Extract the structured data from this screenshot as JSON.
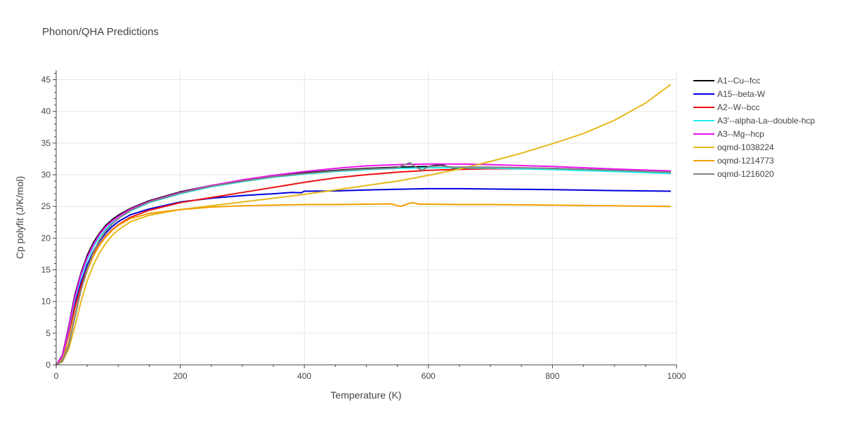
{
  "chart_data": {
    "type": "line",
    "title": "Phonon/QHA Predictions",
    "xlabel": "Temperature (K)",
    "ylabel": "Cp polyfit (J/K/mol)",
    "xlim": [
      0,
      1000
    ],
    "ylim": [
      0,
      46.5
    ],
    "x_ticks": [
      0,
      200,
      400,
      600,
      800,
      1000
    ],
    "y_ticks": [
      0,
      5,
      10,
      15,
      20,
      25,
      30,
      35,
      40,
      45
    ],
    "grid": true,
    "legend_position": "right",
    "series": [
      {
        "name": "A1--Cu--fcc",
        "color": "#000000",
        "x": [
          0,
          10,
          20,
          30,
          40,
          50,
          60,
          70,
          80,
          90,
          100,
          120,
          150,
          200,
          250,
          300,
          350,
          400,
          450,
          500,
          550,
          600,
          620,
          640,
          700,
          800,
          900,
          990
        ],
        "y": [
          0,
          1.5,
          6.0,
          11.0,
          14.5,
          17.3,
          19.3,
          20.8,
          22.0,
          22.9,
          23.6,
          24.7,
          25.9,
          27.3,
          28.3,
          29.1,
          29.8,
          30.3,
          30.7,
          31.0,
          31.2,
          31.3,
          31.6,
          31.0,
          31.1,
          31.0,
          30.7,
          30.3
        ]
      },
      {
        "name": "A15--beta-W",
        "color": "#0000dd",
        "x": [
          0,
          10,
          20,
          30,
          40,
          50,
          60,
          70,
          80,
          90,
          100,
          120,
          150,
          200,
          250,
          300,
          350,
          380,
          395,
          400,
          450,
          500,
          550,
          600,
          650,
          700,
          800,
          900,
          990
        ],
        "y": [
          0,
          1.2,
          5.0,
          9.5,
          13.0,
          15.8,
          17.9,
          19.5,
          20.8,
          21.8,
          22.6,
          23.7,
          24.6,
          25.7,
          26.3,
          26.7,
          27.0,
          27.2,
          27.15,
          27.4,
          27.45,
          27.6,
          27.7,
          27.8,
          27.8,
          27.75,
          27.65,
          27.5,
          27.4
        ]
      },
      {
        "name": "A2--W--bcc",
        "color": "#ee1111",
        "x": [
          0,
          10,
          20,
          30,
          40,
          50,
          60,
          70,
          80,
          90,
          100,
          120,
          150,
          200,
          250,
          300,
          350,
          400,
          450,
          500,
          550,
          600,
          650,
          700,
          800,
          900,
          990
        ],
        "y": [
          0,
          1.2,
          4.8,
          9.0,
          12.5,
          15.3,
          17.4,
          19.0,
          20.3,
          21.3,
          22.1,
          23.3,
          24.4,
          25.6,
          26.4,
          27.2,
          28.0,
          28.8,
          29.5,
          30.0,
          30.4,
          30.7,
          30.85,
          30.95,
          30.9,
          30.6,
          30.3
        ]
      },
      {
        "name": "A3'--alpha-La--double-hcp",
        "color": "#22eeee",
        "x": [
          0,
          10,
          20,
          30,
          40,
          50,
          60,
          70,
          80,
          90,
          100,
          120,
          150,
          200,
          250,
          300,
          350,
          400,
          450,
          500,
          550,
          600,
          650,
          700,
          800,
          900,
          990
        ],
        "y": [
          0,
          1.3,
          5.5,
          10.3,
          13.9,
          16.6,
          18.6,
          20.2,
          21.4,
          22.4,
          23.1,
          24.3,
          25.6,
          27.0,
          28.1,
          28.9,
          29.6,
          30.1,
          30.5,
          30.8,
          31.0,
          31.1,
          31.1,
          31.05,
          30.8,
          30.5,
          30.2
        ]
      },
      {
        "name": "A3--Mg--hcp",
        "color": "#ee11ee",
        "x": [
          0,
          10,
          20,
          30,
          40,
          50,
          60,
          70,
          80,
          90,
          100,
          120,
          150,
          200,
          250,
          300,
          350,
          400,
          450,
          500,
          550,
          600,
          650,
          700,
          800,
          900,
          990
        ],
        "y": [
          0,
          1.4,
          5.8,
          10.7,
          14.3,
          17.0,
          19.0,
          20.6,
          21.8,
          22.7,
          23.4,
          24.6,
          25.8,
          27.2,
          28.3,
          29.2,
          29.9,
          30.5,
          31.0,
          31.4,
          31.6,
          31.7,
          31.7,
          31.6,
          31.3,
          30.9,
          30.6
        ]
      },
      {
        "name": "oqmd-1038224",
        "color": "#e6b81a",
        "x": [
          0,
          10,
          20,
          30,
          40,
          50,
          60,
          70,
          80,
          90,
          100,
          120,
          150,
          200,
          250,
          300,
          350,
          400,
          450,
          500,
          550,
          600,
          650,
          700,
          750,
          800,
          850,
          900,
          950,
          990
        ],
        "y": [
          0,
          0.5,
          2.5,
          6.0,
          10.0,
          13.3,
          15.8,
          17.7,
          19.2,
          20.4,
          21.3,
          22.6,
          23.6,
          24.5,
          25.1,
          25.7,
          26.3,
          26.9,
          27.6,
          28.3,
          29.0,
          29.9,
          30.9,
          32.1,
          33.4,
          34.9,
          36.5,
          38.6,
          41.3,
          44.2
        ]
      },
      {
        "name": "oqmd-1214773",
        "color": "#f5a000",
        "x": [
          0,
          10,
          20,
          30,
          40,
          50,
          60,
          70,
          80,
          90,
          100,
          120,
          150,
          200,
          250,
          300,
          350,
          400,
          450,
          500,
          540,
          555,
          570,
          575,
          585,
          600,
          650,
          700,
          800,
          900,
          990
        ],
        "y": [
          0,
          0.8,
          3.5,
          7.8,
          11.8,
          14.9,
          17.2,
          18.9,
          20.2,
          21.2,
          22.0,
          23.1,
          23.9,
          24.5,
          24.9,
          25.1,
          25.2,
          25.3,
          25.3,
          25.35,
          25.4,
          25.0,
          25.5,
          25.6,
          25.35,
          25.35,
          25.3,
          25.3,
          25.2,
          25.1,
          25.0
        ]
      },
      {
        "name": "oqmd-1216020",
        "color": "#808080",
        "x": [
          0,
          10,
          20,
          30,
          40,
          50,
          60,
          70,
          80,
          90,
          100,
          120,
          150,
          200,
          250,
          300,
          350,
          400,
          450,
          500,
          550,
          570,
          580,
          590,
          600,
          620,
          640,
          700,
          800,
          900,
          990
        ],
        "y": [
          0,
          0.6,
          3.0,
          7.5,
          11.8,
          15.2,
          17.8,
          19.7,
          21.1,
          22.2,
          23.1,
          24.4,
          25.7,
          27.1,
          28.2,
          29.0,
          29.7,
          30.2,
          30.6,
          30.9,
          31.1,
          31.9,
          31.2,
          30.7,
          31.3,
          31.4,
          31.2,
          31.2,
          31.0,
          30.7,
          30.4
        ]
      }
    ]
  }
}
